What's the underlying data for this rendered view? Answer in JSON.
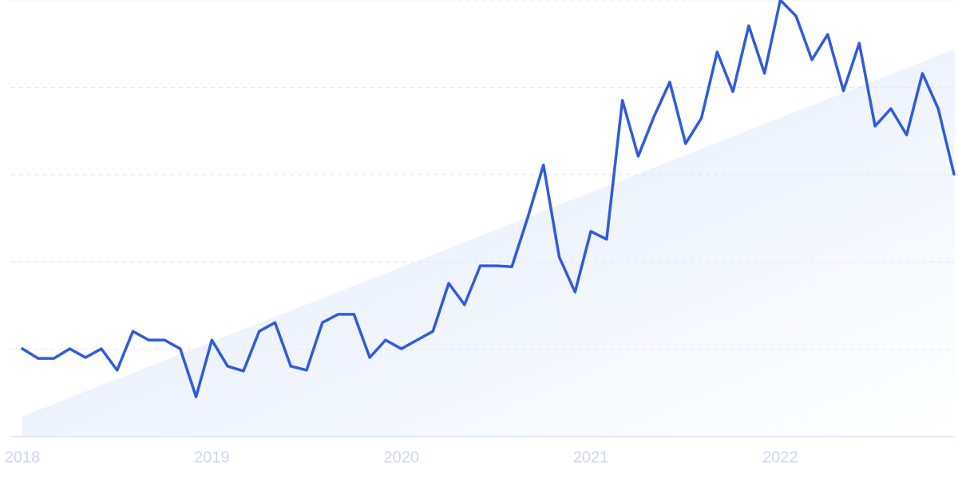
{
  "chart_data": {
    "type": "line",
    "categories": [
      "2018",
      null,
      null,
      null,
      null,
      null,
      null,
      null,
      null,
      null,
      null,
      null,
      "2019",
      null,
      null,
      null,
      null,
      null,
      null,
      null,
      null,
      null,
      null,
      null,
      "2020",
      null,
      null,
      null,
      null,
      null,
      null,
      null,
      null,
      null,
      null,
      null,
      "2021",
      null,
      null,
      null,
      null,
      null,
      null,
      null,
      null,
      null,
      null,
      null,
      "2022",
      null,
      null,
      null,
      null,
      null,
      null,
      null,
      null,
      null,
      null,
      null
    ],
    "values": [
      20.1,
      17.9,
      17.9,
      20.1,
      18.1,
      20.1,
      15.2,
      24.1,
      22.1,
      22.1,
      20.1,
      9.1,
      22.1,
      16.1,
      15.0,
      24.1,
      26.1,
      16.1,
      15.2,
      26.1,
      28.0,
      28.0,
      18.1,
      22.1,
      20.1,
      22.1,
      24.1,
      35.1,
      30.2,
      39.1,
      39.1,
      38.9,
      50.1,
      62.2,
      41.1,
      33.1,
      47.0,
      45.2,
      77.0,
      64.2,
      73.3,
      81.2,
      67.1,
      72.9,
      88.1,
      79.0,
      94.1,
      83.2,
      100,
      96.3,
      86.3,
      92.1,
      79.2,
      90.1,
      71.1,
      75.1,
      69.1,
      83.2,
      75.1,
      60.1
    ],
    "color": "#2f5bdc",
    "trend": [
      4.6,
      88.7
    ],
    "trend_color": "#dfeafb",
    "ylim": [
      0,
      100
    ],
    "yticks": [
      0,
      20,
      40,
      60,
      80,
      100
    ],
    "grid": true
  }
}
